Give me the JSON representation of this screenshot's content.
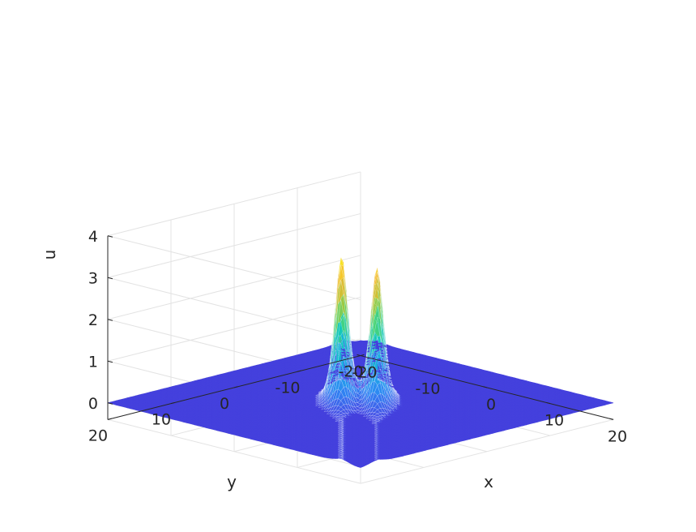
{
  "chart_data": {
    "type": "surface",
    "xlabel": "x",
    "ylabel": "y",
    "zlabel": "u",
    "xlim": [
      -20,
      20
    ],
    "ylim": [
      -20,
      20
    ],
    "zlim": [
      -0.4,
      4
    ],
    "x_ticks": [
      -20,
      -10,
      0,
      10,
      20
    ],
    "y_ticks": [
      -20,
      -10,
      0,
      10,
      20
    ],
    "z_ticks": [
      0,
      1,
      2,
      3,
      4
    ],
    "x_tick_labels": [
      "-20",
      "-10",
      "0",
      "10",
      "20"
    ],
    "y_tick_labels": [
      "-20",
      "-10",
      "0",
      "10",
      "20"
    ],
    "z_tick_labels": [
      "0",
      "1",
      "2",
      "3",
      "4"
    ],
    "grid": true,
    "colormap": "parula",
    "baseline_color": "#4440dd",
    "peaks": [
      {
        "x": -2.2,
        "y": 1.5,
        "u": 3.5
      },
      {
        "x": 1.3,
        "y": -1.3,
        "u": 3.25
      }
    ],
    "wave_fronts": [
      {
        "description": "ridge along line y = x + 3",
        "u_max": 3.5
      },
      {
        "description": "ridge along line y = x - 2.6",
        "u_max": 3.25
      }
    ]
  }
}
